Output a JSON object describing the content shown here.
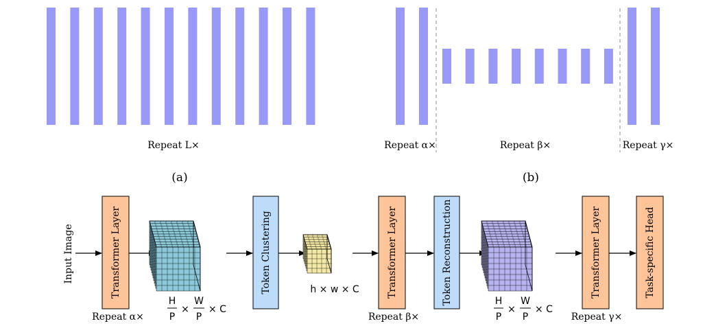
{
  "colors": {
    "bar": "#9999f8",
    "transformer_fill": "#fdc49a",
    "cluster_fill": "#bcdcfa",
    "cube_big1": "#8bc8d8",
    "cube_small": "#f3e8a6",
    "cube_big2": "#b6b3ee",
    "divider": "#b3b3b3"
  },
  "panel_a": {
    "label": "(a)",
    "repeat_label": "Repeat L×",
    "bar_count": 12
  },
  "panel_b": {
    "label": "(b)",
    "alpha_label": "Repeat α×",
    "beta_label": "Repeat β×",
    "gamma_label": "Repeat γ×",
    "alpha_bar_count": 2,
    "beta_bar_count": 8,
    "gamma_bar_count": 2
  },
  "pipeline": {
    "input": "Input Image",
    "transformer_1": "Transformer Layer",
    "repeat_1": "Repeat α×",
    "dim_1": {
      "h_num": "H",
      "h_den": "P",
      "times": "×",
      "w_num": "W",
      "w_den": "P",
      "c": "× C"
    },
    "clustering": "Token Clustering",
    "dim_small": "h × w × C",
    "transformer_2": "Transformer Layer",
    "repeat_2": "Repeat β×",
    "reconstruction": "Token Reconstruction",
    "dim_2": {
      "h_num": "H",
      "h_den": "P",
      "times": "×",
      "w_num": "W",
      "w_den": "P",
      "c": "× C"
    },
    "transformer_3": "Transformer Layer",
    "repeat_3": "Repeat γ×",
    "head": "Task-specific Head"
  }
}
